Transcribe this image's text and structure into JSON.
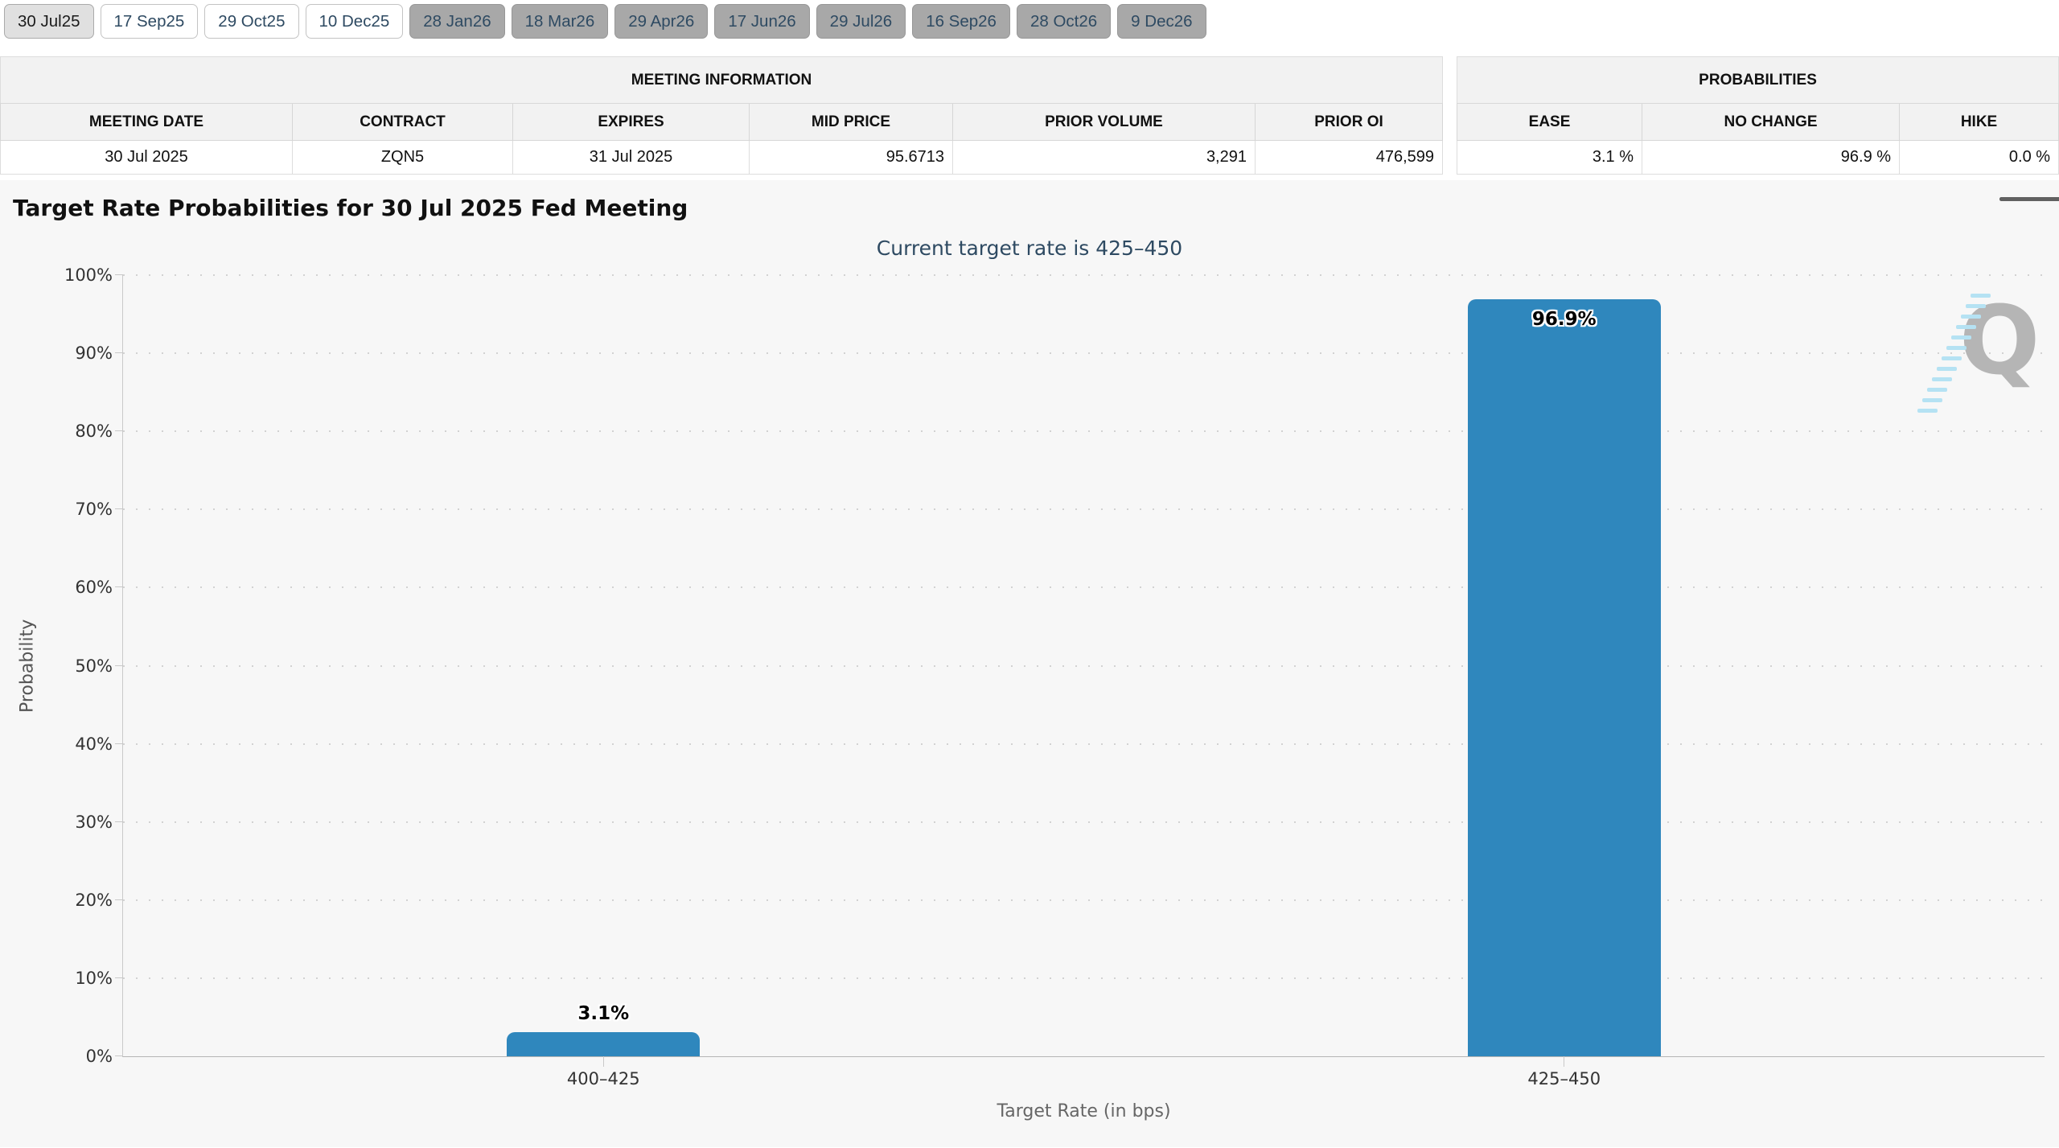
{
  "tabs": {
    "items": [
      {
        "label": "30 Jul25",
        "variant": "selected"
      },
      {
        "label": "17 Sep25",
        "variant": "light"
      },
      {
        "label": "29 Oct25",
        "variant": "light"
      },
      {
        "label": "10 Dec25",
        "variant": "light"
      },
      {
        "label": "28 Jan26",
        "variant": "dark"
      },
      {
        "label": "18 Mar26",
        "variant": "dark"
      },
      {
        "label": "29 Apr26",
        "variant": "dark"
      },
      {
        "label": "17 Jun26",
        "variant": "dark"
      },
      {
        "label": "29 Jul26",
        "variant": "dark"
      },
      {
        "label": "16 Sep26",
        "variant": "dark"
      },
      {
        "label": "28 Oct26",
        "variant": "dark"
      },
      {
        "label": "9 Dec26",
        "variant": "dark"
      }
    ]
  },
  "tables": {
    "meeting": {
      "caption": "MEETING INFORMATION",
      "headers": [
        "MEETING DATE",
        "CONTRACT",
        "EXPIRES",
        "MID PRICE",
        "PRIOR VOLUME",
        "PRIOR OI"
      ],
      "values": [
        "30 Jul 2025",
        "ZQN5",
        "31 Jul 2025",
        "95.6713",
        "3,291",
        "476,599"
      ]
    },
    "probabilities": {
      "caption": "PROBABILITIES",
      "headers": [
        "EASE",
        "NO CHANGE",
        "HIKE"
      ],
      "values": [
        "3.1 %",
        "96.9 %",
        "0.0 %"
      ]
    }
  },
  "chart": {
    "menu_icon": "hamburger-icon",
    "watermark_letter": "Q",
    "colors": {
      "bar": "#2f87bd",
      "chart_background": "#f7f7f7",
      "subtitle_text": "#2e4a62",
      "tab_text": "#2e4a62"
    }
  },
  "chart_data": {
    "type": "bar",
    "title": "Target Rate Probabilities for 30 Jul 2025 Fed Meeting",
    "subtitle": "Current target rate is 425–450",
    "categories": [
      "400–425",
      "425–450"
    ],
    "values": [
      3.1,
      96.9
    ],
    "value_labels": [
      "3.1%",
      "96.9%"
    ],
    "xlabel": "Target Rate (in bps)",
    "ylabel": "Probability",
    "ylim": [
      0,
      100
    ],
    "yticks": [
      "0%",
      "10%",
      "20%",
      "30%",
      "40%",
      "50%",
      "60%",
      "70%",
      "80%",
      "90%",
      "100%"
    ],
    "grid": "dotted-horizontal",
    "legend": "none"
  }
}
